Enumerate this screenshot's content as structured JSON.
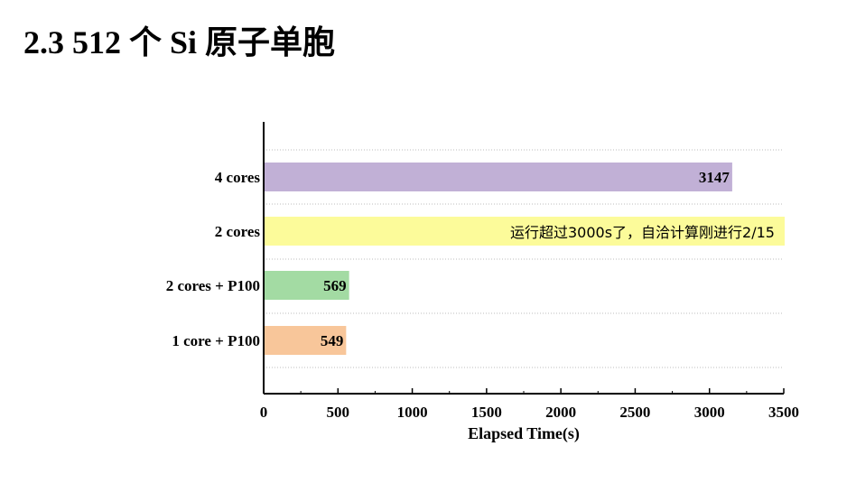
{
  "slide": {
    "title": "2.3 512 个 Si 原子单胞"
  },
  "chart_data": {
    "type": "bar",
    "orientation": "horizontal",
    "categories": [
      "4 cores",
      "2 cores",
      "2 cores + P100",
      "1 core + P100"
    ],
    "values": [
      3147,
      null,
      569,
      549
    ],
    "value_labels": [
      "3147",
      "运行超过3000s了，自洽计算刚进行2/15",
      "569",
      "549"
    ],
    "bar_colors": [
      "#c1b0d6",
      "#fcfb9a",
      "#a3dba3",
      "#f8c69a"
    ],
    "xlabel": "Elapsed Time(s)",
    "xlim": [
      0,
      3500
    ],
    "xticks": [
      "0",
      "500",
      "1000",
      "1500",
      "2000",
      "2500",
      "3000",
      "3500"
    ],
    "grid": "horizontal dotted"
  }
}
